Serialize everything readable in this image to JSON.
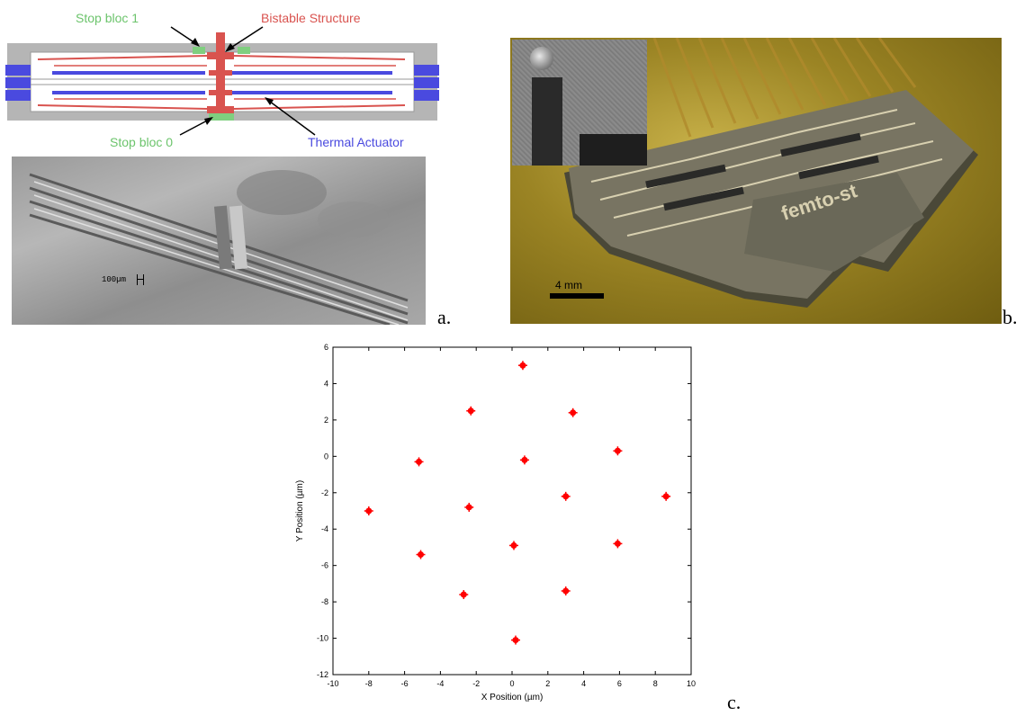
{
  "panel_a": {
    "letter": "a.",
    "labels": {
      "stop_bloc_1": "Stop bloc 1",
      "bistable": "Bistable Structure",
      "stop_bloc_0": "Stop bloc 0",
      "thermal": "Thermal Actuator"
    },
    "scale_text": "100µm",
    "colors": {
      "stop": "#7fcf7f",
      "bistable": "#d9534f",
      "actuator": "#4a4adf"
    }
  },
  "panel_b": {
    "letter": "b.",
    "scale_text": "4 mm",
    "logo_text": "femto-st"
  },
  "panel_c": {
    "letter": "c.",
    "chart_data": {
      "type": "scatter",
      "title": "",
      "xlabel": "X Position (µm)",
      "ylabel": "Y Position (µm)",
      "xlim": [
        -10,
        10
      ],
      "ylim": [
        -12,
        6
      ],
      "xticks": [
        -10,
        -8,
        -6,
        -4,
        -2,
        0,
        2,
        4,
        6,
        8,
        10
      ],
      "yticks": [
        -12,
        -10,
        -8,
        -6,
        -4,
        -2,
        0,
        2,
        4,
        6
      ],
      "color": "#ff0000",
      "points": [
        {
          "x": 0.6,
          "y": 5.0
        },
        {
          "x": -2.3,
          "y": 2.5
        },
        {
          "x": 3.4,
          "y": 2.4
        },
        {
          "x": -5.2,
          "y": -0.3
        },
        {
          "x": 0.7,
          "y": -0.2
        },
        {
          "x": 5.9,
          "y": 0.3
        },
        {
          "x": -8.0,
          "y": -3.0
        },
        {
          "x": -2.4,
          "y": -2.8
        },
        {
          "x": 3.0,
          "y": -2.2
        },
        {
          "x": 8.6,
          "y": -2.2
        },
        {
          "x": -5.1,
          "y": -5.4
        },
        {
          "x": 0.1,
          "y": -4.9
        },
        {
          "x": 5.9,
          "y": -4.8
        },
        {
          "x": -2.7,
          "y": -7.6
        },
        {
          "x": 3.0,
          "y": -7.4
        },
        {
          "x": 0.2,
          "y": -10.1
        }
      ]
    }
  }
}
